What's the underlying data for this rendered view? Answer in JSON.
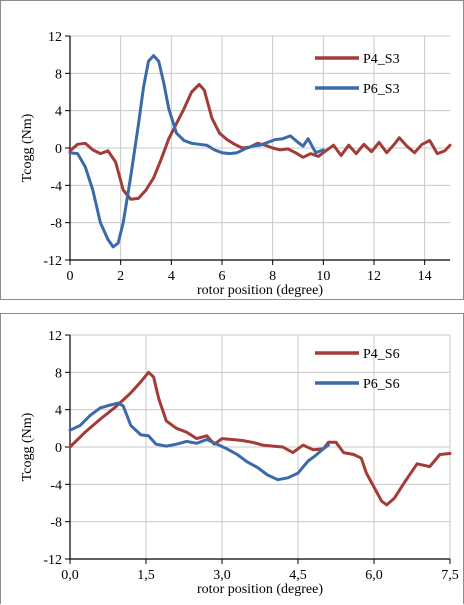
{
  "chart_data": [
    {
      "type": "line",
      "xlabel": "rotor position  (degree)",
      "ylabel": "Tcogg (Nm)",
      "xlim": [
        0,
        15
      ],
      "ylim": [
        -12,
        12
      ],
      "x_ticks": [
        0,
        2,
        4,
        6,
        8,
        10,
        12,
        14
      ],
      "x_tick_labels": [
        "0",
        "2",
        "4",
        "6",
        "8",
        "10",
        "12",
        "14"
      ],
      "y_ticks": [
        -12,
        -8,
        -4,
        0,
        4,
        8,
        12
      ],
      "y_tick_labels": [
        "-12",
        "-8",
        "-4",
        "0",
        "4",
        "8",
        "12"
      ],
      "grid": true,
      "legend_position": "top-right",
      "series": [
        {
          "name": "P4_S3",
          "color": "#a33b36",
          "points": [
            [
              0,
              -0.3
            ],
            [
              0.3,
              0.4
            ],
            [
              0.6,
              0.5
            ],
            [
              0.9,
              -0.2
            ],
            [
              1.2,
              -0.6
            ],
            [
              1.5,
              -0.3
            ],
            [
              1.8,
              -1.5
            ],
            [
              2.1,
              -4.5
            ],
            [
              2.4,
              -5.5
            ],
            [
              2.7,
              -5.4
            ],
            [
              3.0,
              -4.5
            ],
            [
              3.3,
              -3.2
            ],
            [
              3.6,
              -1.2
            ],
            [
              3.9,
              1.0
            ],
            [
              4.2,
              2.6
            ],
            [
              4.5,
              4.2
            ],
            [
              4.8,
              6.0
            ],
            [
              5.1,
              6.8
            ],
            [
              5.3,
              6.2
            ],
            [
              5.6,
              3.2
            ],
            [
              5.9,
              1.6
            ],
            [
              6.2,
              0.9
            ],
            [
              6.5,
              0.4
            ],
            [
              6.8,
              0
            ],
            [
              7.1,
              0.1
            ],
            [
              7.4,
              0.5
            ],
            [
              7.7,
              0.3
            ],
            [
              8.0,
              0
            ],
            [
              8.3,
              -0.2
            ],
            [
              8.6,
              -0.1
            ],
            [
              8.9,
              -0.5
            ],
            [
              9.2,
              -1.0
            ],
            [
              9.5,
              -0.6
            ],
            [
              9.8,
              -0.9
            ],
            [
              10.1,
              -0.3
            ],
            [
              10.4,
              0.3
            ],
            [
              10.7,
              -0.8
            ],
            [
              11.0,
              0.3
            ],
            [
              11.3,
              -0.6
            ],
            [
              11.6,
              0.4
            ],
            [
              11.9,
              -0.4
            ],
            [
              12.2,
              0.6
            ],
            [
              12.5,
              -0.5
            ],
            [
              12.8,
              0.4
            ],
            [
              13.0,
              1.1
            ],
            [
              13.3,
              0.2
            ],
            [
              13.6,
              -0.5
            ],
            [
              13.9,
              0.4
            ],
            [
              14.2,
              0.8
            ],
            [
              14.5,
              -0.6
            ],
            [
              14.8,
              -0.3
            ],
            [
              15.0,
              0.3
            ]
          ]
        },
        {
          "name": "P6_S3",
          "color": "#3c6aa8",
          "points": [
            [
              0,
              -0.5
            ],
            [
              0.3,
              -0.6
            ],
            [
              0.6,
              -2.0
            ],
            [
              0.9,
              -4.5
            ],
            [
              1.2,
              -8.0
            ],
            [
              1.5,
              -9.8
            ],
            [
              1.7,
              -10.6
            ],
            [
              1.9,
              -10.2
            ],
            [
              2.1,
              -8.0
            ],
            [
              2.4,
              -3.0
            ],
            [
              2.7,
              2.5
            ],
            [
              2.9,
              6.5
            ],
            [
              3.1,
              9.3
            ],
            [
              3.3,
              9.9
            ],
            [
              3.5,
              9.3
            ],
            [
              3.7,
              7.0
            ],
            [
              3.9,
              4.2
            ],
            [
              4.2,
              1.6
            ],
            [
              4.5,
              0.8
            ],
            [
              4.8,
              0.5
            ],
            [
              5.1,
              0.4
            ],
            [
              5.4,
              0.3
            ],
            [
              5.7,
              -0.2
            ],
            [
              6.0,
              -0.5
            ],
            [
              6.3,
              -0.6
            ],
            [
              6.6,
              -0.5
            ],
            [
              6.9,
              -0.1
            ],
            [
              7.2,
              0.2
            ],
            [
              7.5,
              0.3
            ],
            [
              7.8,
              0.6
            ],
            [
              8.1,
              0.9
            ],
            [
              8.4,
              1.0
            ],
            [
              8.7,
              1.3
            ],
            [
              9.0,
              0.6
            ],
            [
              9.2,
              0.2
            ],
            [
              9.4,
              1.0
            ],
            [
              9.7,
              -0.5
            ],
            [
              10.0,
              -0.2
            ]
          ]
        }
      ]
    },
    {
      "type": "line",
      "xlabel": "rotor position  (degree)",
      "ylabel": "Tcogg (Nm)",
      "xlim": [
        0,
        7.5
      ],
      "ylim": [
        -12,
        12
      ],
      "x_ticks": [
        0,
        1.5,
        3,
        4.5,
        6,
        7.5
      ],
      "x_tick_labels": [
        "0,0",
        "1,5",
        "3,0",
        "4,5",
        "6,0",
        "7,5"
      ],
      "y_ticks": [
        -12,
        -8,
        -4,
        0,
        4,
        8,
        12
      ],
      "y_tick_labels": [
        "-12",
        "-8",
        "-4",
        "0",
        "4",
        "8",
        "12"
      ],
      "grid": true,
      "legend_position": "top-right",
      "series": [
        {
          "name": "P4_S6",
          "color": "#a33b36",
          "points": [
            [
              0,
              0
            ],
            [
              0.3,
              1.6
            ],
            [
              0.6,
              3.0
            ],
            [
              0.9,
              4.3
            ],
            [
              1.2,
              5.8
            ],
            [
              1.4,
              7.0
            ],
            [
              1.55,
              8.0
            ],
            [
              1.65,
              7.5
            ],
            [
              1.75,
              5.2
            ],
            [
              1.9,
              2.8
            ],
            [
              2.1,
              2.0
            ],
            [
              2.3,
              1.6
            ],
            [
              2.5,
              0.9
            ],
            [
              2.7,
              1.2
            ],
            [
              2.85,
              0.3
            ],
            [
              3.0,
              0.9
            ],
            [
              3.2,
              0.8
            ],
            [
              3.4,
              0.7
            ],
            [
              3.6,
              0.5
            ],
            [
              3.8,
              0.2
            ],
            [
              4.0,
              0.1
            ],
            [
              4.2,
              0
            ],
            [
              4.4,
              -0.6
            ],
            [
              4.6,
              0.2
            ],
            [
              4.8,
              -0.3
            ],
            [
              5.0,
              -0.2
            ],
            [
              5.1,
              0.5
            ],
            [
              5.25,
              0.5
            ],
            [
              5.4,
              -0.6
            ],
            [
              5.6,
              -0.8
            ],
            [
              5.75,
              -1.2
            ],
            [
              5.85,
              -2.8
            ],
            [
              6.0,
              -4.3
            ],
            [
              6.15,
              -5.8
            ],
            [
              6.25,
              -6.2
            ],
            [
              6.4,
              -5.5
            ],
            [
              6.6,
              -3.8
            ],
            [
              6.85,
              -1.8
            ],
            [
              7.1,
              -2.1
            ],
            [
              7.3,
              -0.8
            ],
            [
              7.5,
              -0.7
            ]
          ]
        },
        {
          "name": "P6_S6",
          "color": "#3c6aa8",
          "points": [
            [
              0,
              1.8
            ],
            [
              0.2,
              2.3
            ],
            [
              0.4,
              3.4
            ],
            [
              0.6,
              4.2
            ],
            [
              0.8,
              4.5
            ],
            [
              0.95,
              4.7
            ],
            [
              1.05,
              4.4
            ],
            [
              1.2,
              2.3
            ],
            [
              1.4,
              1.3
            ],
            [
              1.55,
              1.2
            ],
            [
              1.7,
              0.3
            ],
            [
              1.9,
              0.1
            ],
            [
              2.1,
              0.3
            ],
            [
              2.3,
              0.6
            ],
            [
              2.5,
              0.4
            ],
            [
              2.7,
              0.8
            ],
            [
              2.9,
              0.3
            ],
            [
              3.1,
              -0.2
            ],
            [
              3.3,
              -0.8
            ],
            [
              3.5,
              -1.6
            ],
            [
              3.7,
              -2.2
            ],
            [
              3.9,
              -3.0
            ],
            [
              4.1,
              -3.5
            ],
            [
              4.3,
              -3.3
            ],
            [
              4.5,
              -2.8
            ],
            [
              4.7,
              -1.5
            ],
            [
              4.85,
              -0.9
            ],
            [
              5.0,
              -0.2
            ],
            [
              5.1,
              0.2
            ]
          ]
        }
      ]
    }
  ]
}
